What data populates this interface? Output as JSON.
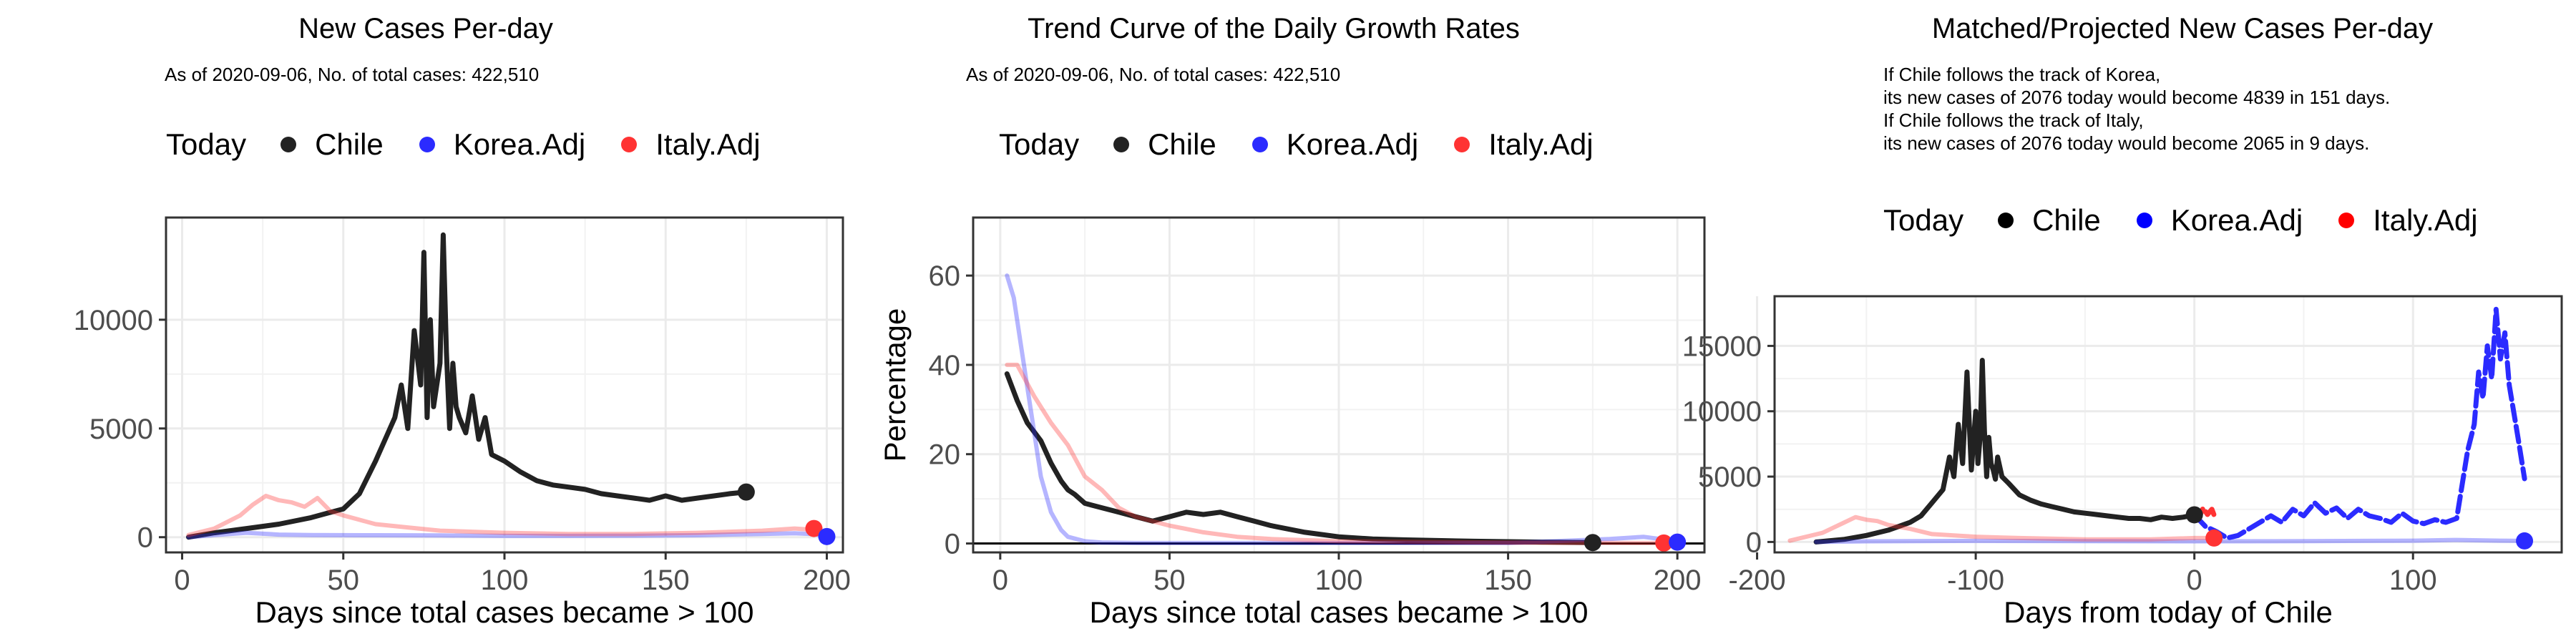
{
  "colors": {
    "chile": "#222222",
    "korea": "#2b2bff",
    "italy": "#ff3333",
    "grid": "#ebebeb",
    "axis": "#333333"
  },
  "panels": [
    {
      "title": "New Cases Per-day",
      "subtitle": [
        "As of 2020-09-06, No. of total cases: 422,510"
      ],
      "legend": {
        "title": "Today",
        "items": [
          "Chile",
          "Korea.Adj",
          "Italy.Adj"
        ]
      }
    },
    {
      "title": "Trend Curve of the Daily Growth Rates",
      "subtitle": [
        "As of 2020-09-06, No. of total cases: 422,510"
      ],
      "legend": {
        "title": "Today",
        "items": [
          "Chile",
          "Korea.Adj",
          "Italy.Adj"
        ]
      }
    },
    {
      "title": "Matched/Projected New Cases Per-day",
      "subtitle": [
        "If Chile follows the track of Korea,",
        "its new cases of 2076 today would become 4839 in 151 days.",
        "If Chile follows the track of Italy,",
        "its new cases of 2076 today would become 2065 in 9 days."
      ],
      "legend": {
        "title": "Today",
        "items": [
          "Chile",
          "Korea.Adj",
          "Italy.Adj"
        ]
      }
    }
  ],
  "chart_data": [
    {
      "type": "line",
      "title": "New Cases Per-day",
      "xlabel": "Days since total cases became > 100",
      "ylabel": "",
      "xlim": [
        -5,
        205
      ],
      "ylim": [
        -700,
        14700
      ],
      "xticks": [
        0,
        50,
        100,
        150,
        200
      ],
      "yticks": [
        0,
        5000,
        10000
      ],
      "grid": true,
      "legend_position": "top",
      "series": [
        {
          "name": "Chile",
          "color": "chile",
          "opacity": 1,
          "x": [
            2,
            10,
            20,
            30,
            40,
            45,
            50,
            55,
            60,
            63,
            66,
            68,
            70,
            72,
            74,
            75,
            76,
            77,
            78,
            80,
            81,
            82,
            83,
            84,
            85,
            86,
            88,
            90,
            92,
            94,
            96,
            100,
            105,
            110,
            115,
            120,
            125,
            130,
            135,
            140,
            145,
            150,
            155,
            160,
            165,
            170,
            175
          ],
          "y": [
            0,
            200,
            400,
            600,
            900,
            1100,
            1300,
            2000,
            3500,
            4500,
            5500,
            7000,
            5000,
            9500,
            7000,
            13100,
            5500,
            10000,
            6000,
            8000,
            13900,
            8500,
            5000,
            8000,
            6000,
            5500,
            4800,
            6500,
            4500,
            5500,
            3800,
            3500,
            3000,
            2600,
            2400,
            2300,
            2200,
            2000,
            1900,
            1800,
            1700,
            1900,
            1700,
            1800,
            1900,
            2000,
            2076
          ]
        },
        {
          "name": "Korea.Adj",
          "color": "korea",
          "opacity": 0.35,
          "x": [
            2,
            10,
            20,
            30,
            40,
            60,
            80,
            100,
            120,
            140,
            160,
            180,
            190,
            195,
            200
          ],
          "y": [
            0,
            100,
            200,
            120,
            100,
            90,
            80,
            60,
            60,
            70,
            90,
            150,
            180,
            150,
            80
          ]
        },
        {
          "name": "Italy.Adj",
          "color": "italy",
          "opacity": 0.35,
          "x": [
            2,
            10,
            18,
            22,
            26,
            30,
            34,
            38,
            42,
            46,
            50,
            55,
            60,
            70,
            80,
            90,
            100,
            120,
            140,
            160,
            180,
            190,
            195
          ],
          "y": [
            100,
            400,
            1000,
            1500,
            1900,
            1700,
            1600,
            1400,
            1800,
            1200,
            1000,
            800,
            600,
            450,
            300,
            250,
            200,
            150,
            150,
            200,
            300,
            400,
            350
          ]
        }
      ],
      "today_points": [
        {
          "name": "Chile",
          "color": "chile",
          "x": 175,
          "y": 2076
        },
        {
          "name": "Italy.Adj",
          "color": "italy",
          "x": 196,
          "y": 400
        },
        {
          "name": "Korea.Adj",
          "color": "korea",
          "x": 200,
          "y": 30
        }
      ]
    },
    {
      "type": "line",
      "title": "Trend Curve of the Daily Growth Rates",
      "xlabel": "Days since total cases became > 100",
      "ylabel": "Percentage",
      "xlim": [
        -8,
        208
      ],
      "ylim": [
        -2,
        73
      ],
      "xticks": [
        0,
        50,
        100,
        150,
        200
      ],
      "yticks": [
        0,
        20,
        40,
        60
      ],
      "grid": true,
      "legend_position": "top",
      "hline": 0,
      "series": [
        {
          "name": "Chile",
          "color": "chile",
          "opacity": 1,
          "x": [
            2,
            5,
            8,
            10,
            12,
            15,
            18,
            20,
            22,
            25,
            30,
            35,
            40,
            45,
            50,
            55,
            60,
            65,
            70,
            75,
            80,
            90,
            100,
            110,
            120,
            140,
            160,
            175
          ],
          "y": [
            38,
            32,
            27,
            25,
            23,
            18,
            14,
            12,
            11,
            9,
            8,
            7,
            6,
            5,
            6,
            7,
            6.5,
            7,
            6,
            5,
            4,
            2.5,
            1.5,
            1,
            0.8,
            0.5,
            0.3,
            0.2
          ]
        },
        {
          "name": "Korea.Adj",
          "color": "korea",
          "opacity": 0.35,
          "x": [
            2,
            4,
            6,
            8,
            10,
            12,
            15,
            18,
            20,
            25,
            30,
            40,
            60,
            100,
            150,
            180,
            190,
            195,
            200
          ],
          "y": [
            60,
            55,
            45,
            35,
            25,
            15,
            7,
            3,
            1.5,
            0.5,
            0.2,
            0.1,
            0.1,
            0.1,
            0.1,
            1,
            1.5,
            1,
            0.3
          ]
        },
        {
          "name": "Italy.Adj",
          "color": "italy",
          "opacity": 0.35,
          "x": [
            2,
            5,
            10,
            15,
            20,
            25,
            30,
            35,
            40,
            50,
            60,
            70,
            80,
            100,
            150,
            190,
            196
          ],
          "y": [
            40,
            40,
            33,
            27,
            22,
            15,
            12,
            8,
            6,
            4,
            2.5,
            1.5,
            1,
            0.5,
            0.2,
            0.1,
            0.1
          ]
        }
      ],
      "today_points": [
        {
          "name": "Chile",
          "color": "chile",
          "x": 175,
          "y": 0.2
        },
        {
          "name": "Italy.Adj",
          "color": "italy",
          "x": 196,
          "y": 0.1
        },
        {
          "name": "Korea.Adj",
          "color": "korea",
          "x": 200,
          "y": 0.3
        }
      ]
    },
    {
      "type": "line",
      "title": "Matched/Projected New Cases Per-day",
      "xlabel": "Days from today of Chile",
      "ylabel": "",
      "xlim": [
        -192,
        168
      ],
      "ylim": [
        -800,
        18800
      ],
      "xticks": [
        -200,
        -100,
        0,
        100
      ],
      "yticks": [
        0,
        5000,
        10000,
        15000
      ],
      "grid": true,
      "legend_position": "top",
      "series": [
        {
          "name": "Chile",
          "color": "chile",
          "opacity": 1,
          "x": [
            -173,
            -160,
            -150,
            -140,
            -130,
            -125,
            -120,
            -115,
            -112,
            -110,
            -108,
            -106,
            -104,
            -102,
            -100,
            -99,
            -98,
            -97,
            -96,
            -95,
            -94,
            -93,
            -92,
            -91,
            -90,
            -88,
            -85,
            -80,
            -75,
            -70,
            -65,
            -60,
            -55,
            -50,
            -45,
            -40,
            -35,
            -30,
            -25,
            -20,
            -15,
            -10,
            -5,
            0
          ],
          "y": [
            0,
            200,
            500,
            900,
            1500,
            2000,
            3000,
            4000,
            6500,
            5000,
            9000,
            6000,
            13000,
            5500,
            10000,
            6000,
            8000,
            13900,
            8500,
            5000,
            8000,
            6000,
            5500,
            4800,
            6500,
            5000,
            4500,
            3600,
            3200,
            2900,
            2700,
            2500,
            2300,
            2200,
            2100,
            2000,
            1900,
            1800,
            1800,
            1700,
            1900,
            1800,
            1900,
            2076
          ]
        },
        {
          "name": "Korea.Adj",
          "color": "korea",
          "opacity": 0.35,
          "x": [
            -173,
            -150,
            -100,
            -50,
            0,
            50,
            100,
            120,
            140,
            151
          ],
          "y": [
            0,
            50,
            80,
            60,
            50,
            60,
            100,
            150,
            100,
            80
          ]
        },
        {
          "name": "Italy.Adj",
          "color": "italy",
          "opacity": 0.35,
          "x": [
            -185,
            -170,
            -160,
            -155,
            -150,
            -145,
            -140,
            -130,
            -120,
            -100,
            -80,
            -50,
            -20,
            0,
            9
          ],
          "y": [
            100,
            700,
            1500,
            1900,
            1700,
            1600,
            1300,
            1000,
            600,
            400,
            300,
            200,
            200,
            300,
            300
          ]
        },
        {
          "name": "Korea.Adj",
          "color": "korea",
          "opacity": 1,
          "dashed": true,
          "x": [
            0,
            5,
            10,
            15,
            20,
            25,
            30,
            35,
            40,
            45,
            50,
            55,
            60,
            65,
            70,
            75,
            80,
            85,
            90,
            95,
            100,
            105,
            110,
            115,
            120,
            125,
            128,
            130,
            132,
            134,
            136,
            138,
            140,
            142,
            144,
            146,
            148,
            151
          ],
          "y": [
            2076,
            1200,
            800,
            300,
            500,
            1000,
            1500,
            2000,
            1500,
            2500,
            2000,
            3000,
            2200,
            2600,
            1800,
            2500,
            2000,
            1800,
            1500,
            2200,
            1600,
            1400,
            1700,
            1500,
            1800,
            7000,
            9000,
            13000,
            11000,
            15000,
            12500,
            17800,
            14000,
            16000,
            12000,
            10000,
            8000,
            4839
          ]
        },
        {
          "name": "Italy.Adj",
          "color": "italy",
          "opacity": 1,
          "dashed": true,
          "x": [
            0,
            2,
            4,
            6,
            8,
            9
          ],
          "y": [
            2076,
            1800,
            2600,
            2100,
            2500,
            2065
          ]
        }
      ],
      "today_points": [
        {
          "name": "Chile",
          "color": "chile",
          "x": 0,
          "y": 2076
        },
        {
          "name": "Italy.Adj",
          "color": "italy",
          "x": 9,
          "y": 300
        },
        {
          "name": "Korea.Adj",
          "color": "korea",
          "x": 151,
          "y": 80
        }
      ]
    }
  ]
}
